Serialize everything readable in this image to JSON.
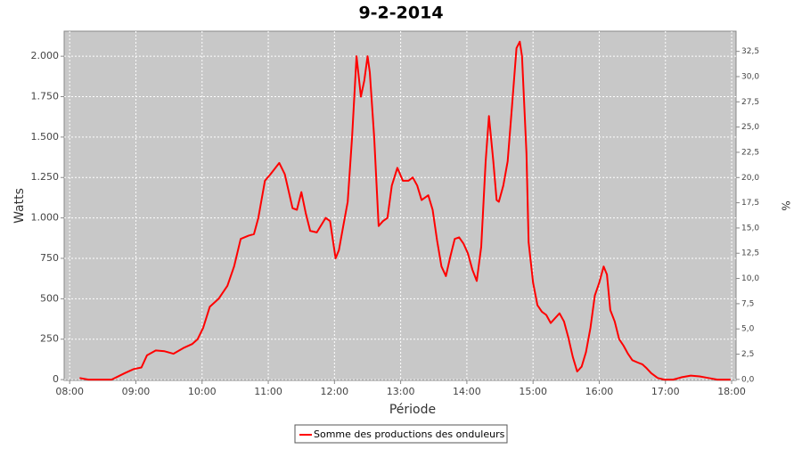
{
  "chart_data": {
    "type": "line",
    "title": "9-2-2014",
    "x_label": "Période",
    "y_label": "Watts",
    "y2_label": "%",
    "x": [
      "08:09",
      "08:17",
      "08:38",
      "08:50",
      "08:58",
      "09:05",
      "09:10",
      "09:18",
      "09:26",
      "09:34",
      "09:43",
      "09:51",
      "09:56",
      "10:01",
      "10:07",
      "10:15",
      "10:23",
      "10:29",
      "10:35",
      "10:42",
      "10:47",
      "10:51",
      "10:57",
      "11:02",
      "11:10",
      "11:15",
      "11:22",
      "11:26",
      "11:30",
      "11:34",
      "11:38",
      "11:44",
      "11:52",
      "11:56",
      "12:01",
      "12:04",
      "12:08",
      "12:12",
      "12:16",
      "12:20",
      "12:24",
      "12:27",
      "12:30",
      "12:32",
      "12:36",
      "12:40",
      "12:44",
      "12:48",
      "12:52",
      "12:57",
      "13:02",
      "13:07",
      "13:11",
      "13:15",
      "13:19",
      "13:25",
      "13:29",
      "13:33",
      "13:37",
      "13:41",
      "13:45",
      "13:49",
      "13:53",
      "13:57",
      "14:01",
      "14:05",
      "14:09",
      "14:13",
      "14:17",
      "14:20",
      "14:24",
      "14:27",
      "14:29",
      "14:33",
      "14:37",
      "14:41",
      "14:45",
      "14:48",
      "14:50",
      "14:54",
      "14:56",
      "15:00",
      "15:04",
      "15:08",
      "15:12",
      "15:16",
      "15:20",
      "15:24",
      "15:28",
      "15:32",
      "15:36",
      "15:40",
      "15:44",
      "15:48",
      "15:52",
      "15:56",
      "16:00",
      "16:04",
      "16:07",
      "16:10",
      "16:14",
      "16:18",
      "16:22",
      "16:26",
      "16:30",
      "16:35",
      "16:39",
      "16:43",
      "16:47",
      "16:53",
      "16:59",
      "17:07",
      "17:15",
      "17:23",
      "17:31",
      "17:39",
      "17:47",
      "17:59"
    ],
    "series": [
      {
        "name": "Somme des productions des onduleurs",
        "color": "#ff0000",
        "values": [
          10,
          0,
          0,
          40,
          65,
          75,
          150,
          180,
          175,
          160,
          195,
          220,
          250,
          320,
          450,
          500,
          580,
          700,
          870,
          890,
          900,
          1000,
          1230,
          1270,
          1340,
          1270,
          1060,
          1050,
          1160,
          1030,
          920,
          910,
          1000,
          980,
          750,
          800,
          950,
          1100,
          1500,
          2000,
          1750,
          1850,
          2000,
          1900,
          1500,
          950,
          980,
          1000,
          1200,
          1310,
          1230,
          1230,
          1250,
          1200,
          1110,
          1140,
          1050,
          860,
          700,
          640,
          760,
          870,
          880,
          840,
          780,
          680,
          610,
          820,
          1350,
          1630,
          1350,
          1110,
          1100,
          1200,
          1350,
          1700,
          2050,
          2090,
          2000,
          1400,
          850,
          600,
          460,
          420,
          400,
          350,
          380,
          410,
          360,
          260,
          140,
          50,
          80,
          170,
          320,
          520,
          600,
          700,
          650,
          430,
          360,
          250,
          210,
          160,
          120,
          105,
          95,
          70,
          40,
          10,
          0,
          0,
          15,
          25,
          20,
          10,
          0,
          0
        ]
      }
    ],
    "xlim": [
      "07:55",
      "18:04"
    ],
    "xticks": [
      "08:00",
      "09:00",
      "10:00",
      "11:00",
      "12:00",
      "13:00",
      "14:00",
      "15:00",
      "16:00",
      "17:00",
      "18:00"
    ],
    "ylim": [
      -5,
      2155
    ],
    "yticks": [
      0,
      250,
      500,
      750,
      {
        "value": 1000,
        "label": "1.000"
      },
      {
        "value": 1250,
        "label": "1.250"
      },
      {
        "value": 1500,
        "label": "1.500"
      },
      {
        "value": 1750,
        "label": "1.750"
      },
      {
        "value": 2000,
        "label": "2.000"
      }
    ],
    "y2lim": [
      -0.1,
      34.5
    ],
    "y2ticks": [
      {
        "value": 0,
        "label": "0,0"
      },
      {
        "value": 2.5,
        "label": "2,5"
      },
      {
        "value": 5,
        "label": "5,0"
      },
      {
        "value": 7.5,
        "label": "7,5"
      },
      {
        "value": 10,
        "label": "10,0"
      },
      {
        "value": 12.5,
        "label": "12,5"
      },
      {
        "value": 15,
        "label": "15,0"
      },
      {
        "value": 17.5,
        "label": "17,5"
      },
      {
        "value": 20,
        "label": "20,0"
      },
      {
        "value": 22.5,
        "label": "22,5"
      },
      {
        "value": 25,
        "label": "25,0"
      },
      {
        "value": 27.5,
        "label": "27,5"
      },
      {
        "value": 30,
        "label": "30,0"
      },
      {
        "value": 32.5,
        "label": "32,5"
      }
    ],
    "grid": true
  }
}
